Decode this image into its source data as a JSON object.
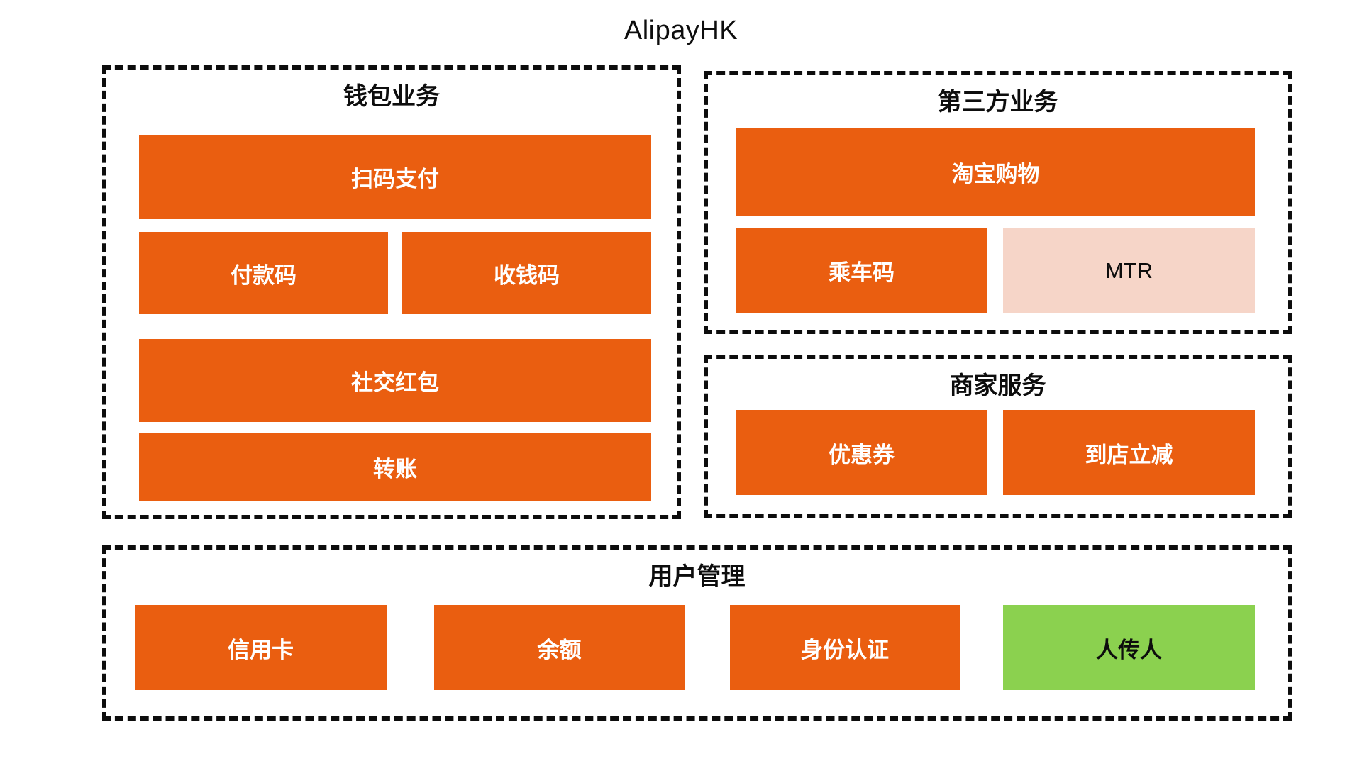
{
  "title": "AlipayHK",
  "colors": {
    "orange": "#EA5E10",
    "pink": "#F6D5C8",
    "green": "#8BD14F",
    "border": "#0d0d0d",
    "text_on_orange": "#FFFFFF",
    "text_dark": "#0d0d0d"
  },
  "wallet": {
    "title": "钱包业务",
    "scan_pay": "扫码支付",
    "pay_code": "付款码",
    "receive_code": "收钱码",
    "social_redpacket": "社交红包",
    "transfer": "转账"
  },
  "third_party": {
    "title": "第三方业务",
    "taobao": "淘宝购物",
    "ride_code": "乘车码",
    "mtr": "MTR"
  },
  "merchant": {
    "title": "商家服务",
    "coupon": "优惠券",
    "instore_discount": "到店立减"
  },
  "user": {
    "title": "用户管理",
    "credit_card": "信用卡",
    "balance": "余额",
    "identity": "身份认证",
    "p2p": "人传人"
  }
}
